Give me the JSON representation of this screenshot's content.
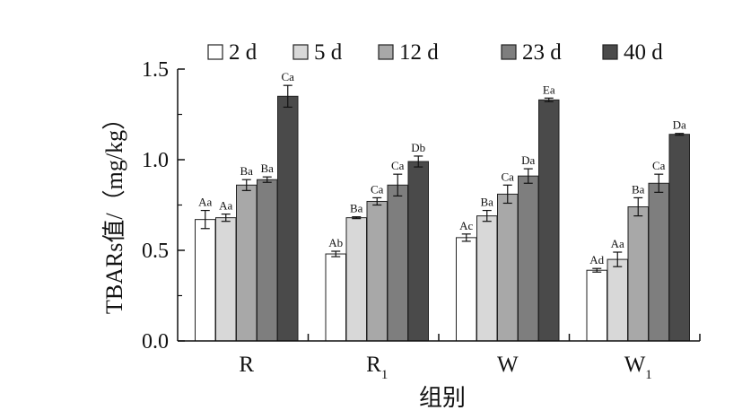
{
  "chart_data": {
    "type": "bar",
    "title": "",
    "xlabel": "组别",
    "ylabel": "TBARs值/（mg/kg）",
    "ylim": [
      0,
      1.5
    ],
    "yticks": [
      "0.0",
      "0.5",
      "1.0",
      "1.5"
    ],
    "categories": [
      {
        "main": "R",
        "sub": ""
      },
      {
        "main": "R",
        "sub": "1"
      },
      {
        "main": "W",
        "sub": ""
      },
      {
        "main": "W",
        "sub": "1"
      }
    ],
    "legend_position": "top",
    "series": [
      {
        "name": "2 d",
        "color": "#ffffff",
        "values": [
          0.67,
          0.48,
          0.57,
          0.39
        ],
        "errors": [
          0.05,
          0.015,
          0.02,
          0.01
        ],
        "labels": [
          "Aa",
          "Ab",
          "Ac",
          "Ad"
        ]
      },
      {
        "name": "5 d",
        "color": "#d8d8d8",
        "values": [
          0.68,
          0.68,
          0.69,
          0.45
        ],
        "errors": [
          0.02,
          0.005,
          0.03,
          0.04
        ],
        "labels": [
          "Aa",
          "Ba",
          "Ba",
          "Aa"
        ]
      },
      {
        "name": "12 d",
        "color": "#a8a8a8",
        "values": [
          0.86,
          0.77,
          0.81,
          0.74
        ],
        "errors": [
          0.03,
          0.02,
          0.05,
          0.05
        ],
        "labels": [
          "Ba",
          "Ca",
          "Ca",
          "Ba"
        ]
      },
      {
        "name": "23 d",
        "color": "#7e7e7e",
        "values": [
          0.89,
          0.86,
          0.91,
          0.87
        ],
        "errors": [
          0.015,
          0.06,
          0.04,
          0.05
        ],
        "labels": [
          "Ba",
          "Ca",
          "Da",
          "Ca"
        ]
      },
      {
        "name": "40 d",
        "color": "#4a4a4a",
        "values": [
          1.35,
          0.99,
          1.33,
          1.14
        ],
        "errors": [
          0.06,
          0.03,
          0.01,
          0.005
        ],
        "labels": [
          "Ca",
          "Db",
          "Ea",
          "Da"
        ]
      }
    ]
  }
}
